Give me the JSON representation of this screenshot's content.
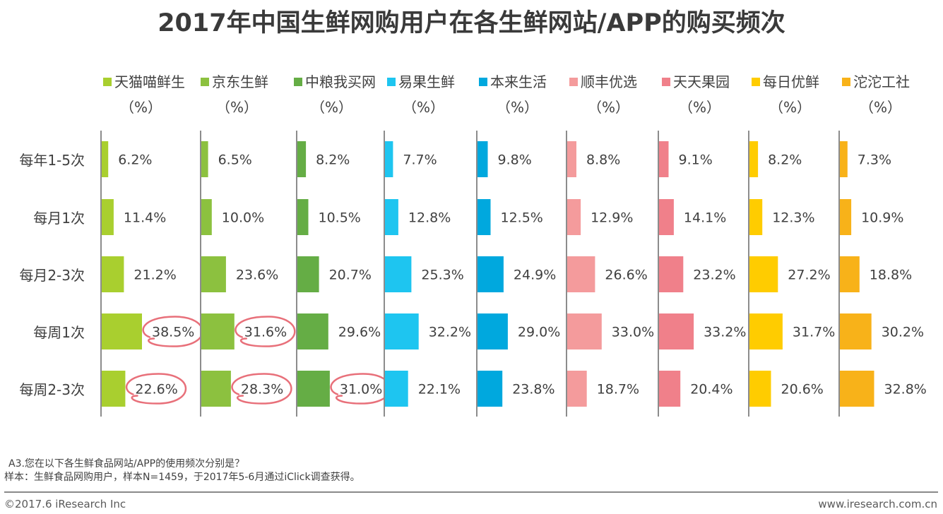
{
  "title": "2017年中国生鲜网购用户在各生鲜网站/APP的购买频次",
  "unit_label": "（%）",
  "chart_data": {
    "type": "bar",
    "orientation": "horizontal-small-multiples",
    "title": "2017年中国生鲜网购用户在各生鲜网站/APP的购买频次",
    "categories": [
      "每年1-5次",
      "每月1次",
      "每月2-3次",
      "每周1次",
      "每周2-3次"
    ],
    "series": [
      {
        "name": "天猫喵鲜生",
        "color": "#a9cf2f",
        "values": [
          6.2,
          11.4,
          21.2,
          38.5,
          22.6
        ],
        "labels": [
          "6.2%",
          "11.4%",
          "21.2%",
          "38.5%",
          "22.6%"
        ],
        "highlighted": [
          false,
          false,
          false,
          true,
          true
        ]
      },
      {
        "name": "京东生鲜",
        "color": "#8cc13f",
        "values": [
          6.5,
          10.0,
          23.6,
          31.6,
          28.3
        ],
        "labels": [
          "6.5%",
          "10.0%",
          "23.6%",
          "31.6%",
          "28.3%"
        ],
        "highlighted": [
          false,
          false,
          false,
          true,
          true
        ]
      },
      {
        "name": "中粮我买网",
        "color": "#65ad45",
        "values": [
          8.2,
          10.5,
          20.7,
          29.6,
          31.0
        ],
        "labels": [
          "8.2%",
          "10.5%",
          "20.7%",
          "29.6%",
          "31.0%"
        ],
        "highlighted": [
          false,
          false,
          false,
          false,
          true
        ]
      },
      {
        "name": "易果生鲜",
        "color": "#1ec5f0",
        "values": [
          7.7,
          12.8,
          25.3,
          32.2,
          22.1
        ],
        "labels": [
          "7.7%",
          "12.8%",
          "25.3%",
          "32.2%",
          "22.1%"
        ],
        "highlighted": [
          false,
          false,
          false,
          false,
          false
        ]
      },
      {
        "name": "本来生活",
        "color": "#00a8de",
        "values": [
          9.8,
          12.5,
          24.9,
          29.0,
          23.8
        ],
        "labels": [
          "9.8%",
          "12.5%",
          "24.9%",
          "29.0%",
          "23.8%"
        ],
        "highlighted": [
          false,
          false,
          false,
          false,
          false
        ]
      },
      {
        "name": "顺丰优选",
        "color": "#f49b9c",
        "values": [
          8.8,
          12.9,
          26.6,
          33.0,
          18.7
        ],
        "labels": [
          "8.8%",
          "12.9%",
          "26.6%",
          "33.0%",
          "18.7%"
        ],
        "highlighted": [
          false,
          false,
          false,
          false,
          false
        ]
      },
      {
        "name": "天天果园",
        "color": "#f0808a",
        "values": [
          9.1,
          14.1,
          23.2,
          33.2,
          20.4
        ],
        "labels": [
          "9.1%",
          "14.1%",
          "23.2%",
          "33.2%",
          "20.4%"
        ],
        "highlighted": [
          false,
          false,
          false,
          false,
          false
        ]
      },
      {
        "name": "每日优鲜",
        "color": "#ffcc00",
        "values": [
          8.2,
          12.3,
          27.2,
          31.7,
          20.6
        ],
        "labels": [
          "8.2%",
          "12.3%",
          "27.2%",
          "31.7%",
          "20.6%"
        ],
        "highlighted": [
          false,
          false,
          false,
          false,
          false
        ]
      },
      {
        "name": "沱沱工社",
        "color": "#f8b219",
        "values": [
          7.3,
          10.9,
          18.8,
          30.2,
          32.8
        ],
        "labels": [
          "7.3%",
          "10.9%",
          "18.8%",
          "30.2%",
          "32.8%"
        ],
        "highlighted": [
          false,
          false,
          false,
          false,
          false
        ]
      }
    ],
    "xlabel": "",
    "ylabel": "",
    "value_unit": "%",
    "highlight_color": "#e8707a",
    "grid": false,
    "legend_position": "top"
  },
  "notes": {
    "question": "A3.您在以下各生鲜食品网站/APP的使用频次分别是？",
    "sample": "样本：生鲜食品网购用户，样本N=1459，于2017年5-6月通过iClick调查获得。"
  },
  "footer": {
    "copyright": "©2017.6 iResearch Inc",
    "website": "www.iresearch.com.cn"
  }
}
